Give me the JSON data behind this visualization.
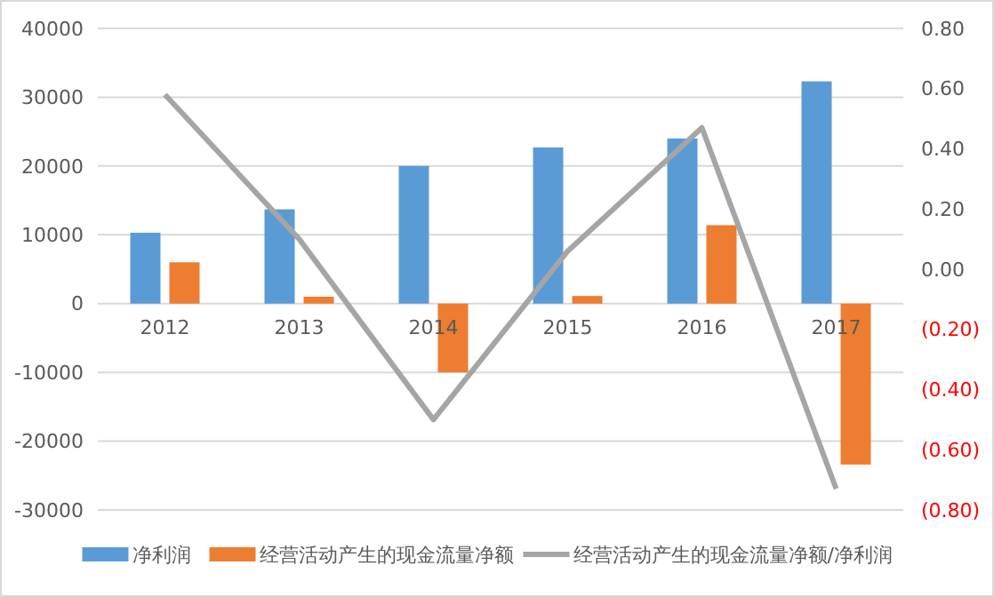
{
  "chart_data": {
    "type": "bar",
    "categories": [
      "2012",
      "2013",
      "2014",
      "2015",
      "2016",
      "2017"
    ],
    "series": [
      {
        "name": "净利润",
        "color": "#5b9bd5",
        "values": [
          10300,
          13700,
          20000,
          22700,
          24000,
          32300
        ]
      },
      {
        "name": "经营活动产生的现金流量净额",
        "color": "#ed7d31",
        "values": [
          6000,
          1000,
          -10000,
          1100,
          11400,
          -23400
        ]
      },
      {
        "name": "经营活动产生的现金流量净额/净利润",
        "type": "line",
        "axis": "y2",
        "color": "#a5a5a5",
        "values": [
          0.58,
          0.1,
          -0.5,
          0.06,
          0.47,
          -0.73
        ]
      }
    ],
    "ylim": [
      -30000,
      40000
    ],
    "yticks": [
      -30000,
      -20000,
      -10000,
      0,
      10000,
      20000,
      30000,
      40000
    ],
    "y2lim": [
      -0.8,
      0.8
    ],
    "y2ticks": [
      {
        "value": -0.8,
        "label": "(0.80)"
      },
      {
        "value": -0.6,
        "label": "(0.60)"
      },
      {
        "value": -0.4,
        "label": "(0.40)"
      },
      {
        "value": -0.2,
        "label": "(0.20)"
      },
      {
        "value": 0,
        "label": "0.00"
      },
      {
        "value": 0.2,
        "label": "0.20"
      },
      {
        "value": 0.4,
        "label": "0.40"
      },
      {
        "value": 0.6,
        "label": "0.60"
      },
      {
        "value": 0.8,
        "label": "0.80"
      }
    ],
    "grid": "y",
    "legend": "bottom",
    "marker": "none"
  }
}
